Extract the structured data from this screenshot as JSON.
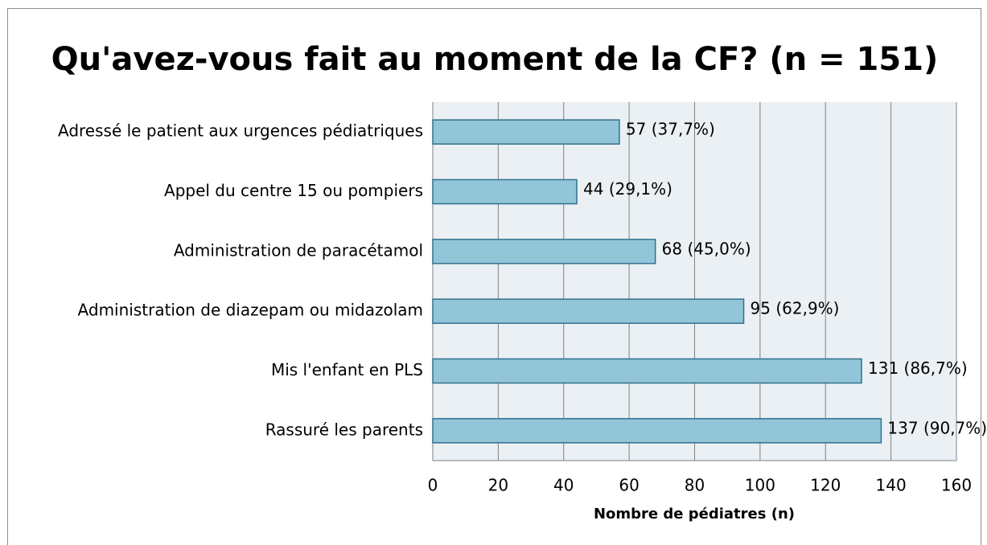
{
  "chart_data": {
    "type": "bar",
    "orientation": "horizontal",
    "title": "Qu'avez-vous fait au moment de la CF? (n = 151)",
    "categories": [
      "Adressé le patient aux urgences pédiatriques",
      "Appel du centre 15 ou pompiers",
      "Administration de paracétamol",
      "Administration de diazepam ou midazolam",
      "Mis l'enfant en PLS",
      "Rassuré les parents"
    ],
    "values": [
      57,
      44,
      68,
      95,
      131,
      137
    ],
    "value_labels": [
      "57 (37,7%)",
      "44 (29,1%)",
      "68 (45,0%)",
      "95 (62,9%)",
      "131 (86,7%)",
      "137 (90,7%)"
    ],
    "color": "#92c5d8",
    "xlabel": "Nombre de pédiatres (n)",
    "xlim": [
      0,
      160
    ],
    "xticks": [
      0,
      20,
      40,
      60,
      80,
      100,
      120,
      140,
      160
    ],
    "grid": true
  }
}
